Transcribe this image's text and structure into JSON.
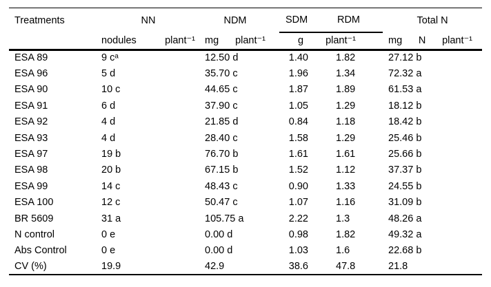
{
  "page": {
    "background": "#ffffff",
    "text_color": "#000000",
    "rule_color": "#000000"
  },
  "table": {
    "header": {
      "treatments_label": "Treatments",
      "nn": {
        "label": "NN",
        "unit_left": "nodules",
        "unit_right": "plant⁻¹"
      },
      "ndm": {
        "label": "NDM",
        "unit_left": "mg",
        "unit_right": "plant⁻¹"
      },
      "sdm_rdm": {
        "label_left": "SDM",
        "label_right": "RDM",
        "unit_left": "g",
        "unit_right": "plant⁻¹"
      },
      "total_n": {
        "label": "Total N",
        "unit_1": "mg",
        "unit_2": "N",
        "unit_3": "plant⁻¹"
      }
    },
    "rows": [
      {
        "treatment": "ESA 89",
        "nn": "9 cᵃ",
        "ndm": "12.50 d",
        "sdm": "1.40",
        "rdm": "1.82",
        "total_n": "27.12 b"
      },
      {
        "treatment": "ESA 96",
        "nn": "5 d",
        "ndm": "35.70 c",
        "sdm": "1.96",
        "rdm": "1.34",
        "total_n": "72.32 a"
      },
      {
        "treatment": "ESA 90",
        "nn": "10 c",
        "ndm": "44.65 c",
        "sdm": "1.87",
        "rdm": "1.89",
        "total_n": "61.53 a"
      },
      {
        "treatment": "ESA 91",
        "nn": "6 d",
        "ndm": "37.90 c",
        "sdm": "1.05",
        "rdm": "1.29",
        "total_n": "18.12 b"
      },
      {
        "treatment": "ESA 92",
        "nn": "4 d",
        "ndm": "21.85 d",
        "sdm": "0.84",
        "rdm": "1.18",
        "total_n": "18.42 b"
      },
      {
        "treatment": "ESA 93",
        "nn": "4 d",
        "ndm": "28.40 c",
        "sdm": "1.58",
        "rdm": "1.29",
        "total_n": "25.46 b"
      },
      {
        "treatment": "ESA 97",
        "nn": "19 b",
        "ndm": "76.70 b",
        "sdm": "1.61",
        "rdm": "1.61",
        "total_n": "25.66 b"
      },
      {
        "treatment": "ESA 98",
        "nn": "20 b",
        "ndm": "67.15 b",
        "sdm": "1.52",
        "rdm": "1.12",
        "total_n": "37.37 b"
      },
      {
        "treatment": "ESA 99",
        "nn": "14 c",
        "ndm": "48.43 c",
        "sdm": "0.90",
        "rdm": "1.33",
        "total_n": "24.55 b"
      },
      {
        "treatment": "ESA 100",
        "nn": "12 c",
        "ndm": "50.47 c",
        "sdm": "1.07",
        "rdm": "1.16",
        "total_n": "31.09 b"
      },
      {
        "treatment": "BR 5609",
        "nn": "31 a",
        "ndm": "105.75 a",
        "sdm": "2.22",
        "rdm": "1.3",
        "total_n": "48.26 a"
      },
      {
        "treatment": "N control",
        "nn": "0 e",
        "ndm": "0.00 d",
        "sdm": "0.98",
        "rdm": "1.82",
        "total_n": "49.32 a"
      },
      {
        "treatment": "Abs Control",
        "nn": "0 e",
        "ndm": "0.00 d",
        "sdm": "1.03",
        "rdm": "1.6",
        "total_n": "22.68 b"
      },
      {
        "treatment": "CV (%)",
        "nn": "19.9",
        "ndm": "42.9",
        "sdm": "38.6",
        "rdm": "47.8",
        "total_n": "21.8"
      }
    ]
  }
}
